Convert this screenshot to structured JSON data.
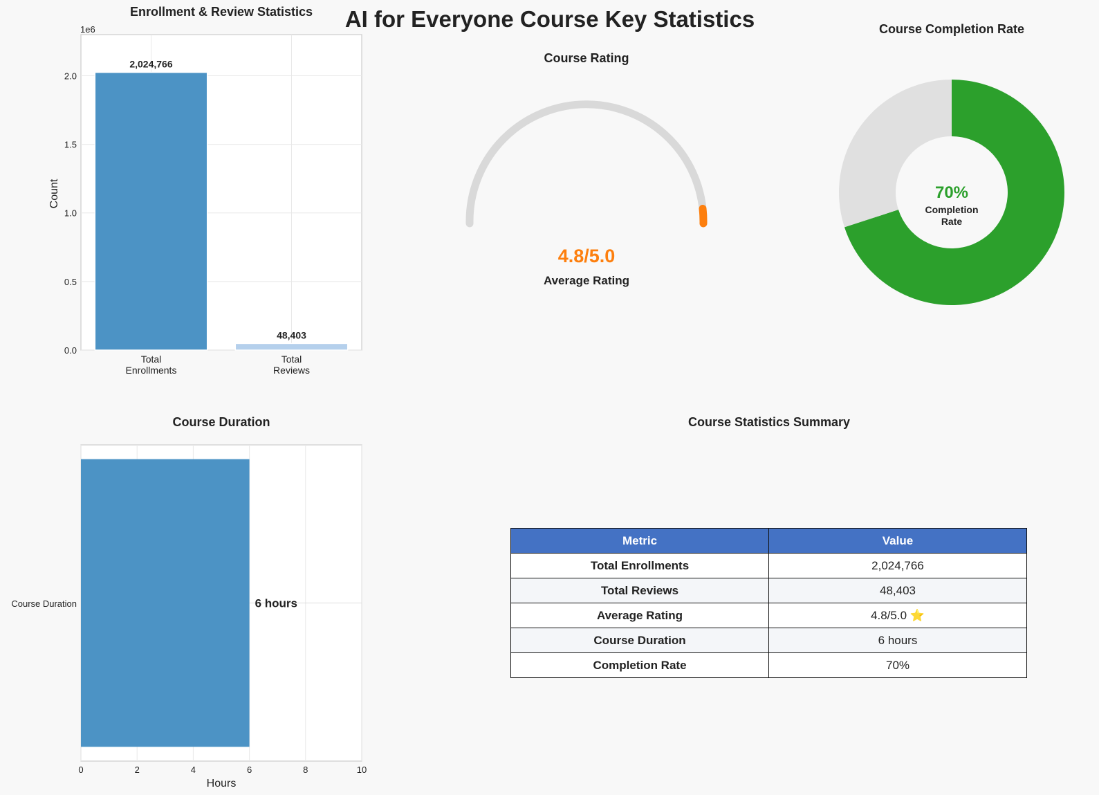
{
  "main_title": "AI for Everyone Course Key Statistics",
  "colors": {
    "blue": "#4c93c5",
    "light_blue": "#b5d0ec",
    "orange": "#fd7f0e",
    "green": "#2ca02c",
    "gray": "#d9d9d9",
    "donut_gray": "#e0e0e0",
    "table_header": "#4472c4"
  },
  "chart_data": [
    {
      "type": "bar",
      "title": "Enrollment & Review Statistics",
      "categories": [
        "Total\nEnrollments",
        "Total\nReviews"
      ],
      "values": [
        2024766,
        48403
      ],
      "value_labels": [
        "2,024,766",
        "48,403"
      ],
      "ylabel": "Count",
      "ylim": [
        0,
        2300000
      ],
      "yticks": [
        0.0,
        0.5,
        1.0,
        1.5,
        2.0
      ],
      "ytick_labels": [
        "0.0",
        "0.5",
        "1.0",
        "1.5",
        "2.0"
      ],
      "offset_label": "1e6",
      "grid": true
    },
    {
      "type": "gauge",
      "title": "Course Rating",
      "value": 4.8,
      "max": 5.0,
      "value_label": "4.8/5.0",
      "caption": "Average Rating"
    },
    {
      "type": "pie",
      "title": "Course Completion Rate",
      "values": [
        70,
        30
      ],
      "center_value": "70%",
      "center_caption": "Completion\nRate"
    },
    {
      "type": "bar",
      "orientation": "horizontal",
      "title": "Course Duration",
      "categories": [
        "Course Duration"
      ],
      "values": [
        6
      ],
      "value_label": "6 hours",
      "xlabel": "Hours",
      "xlim": [
        0,
        10
      ],
      "xticks": [
        0,
        2,
        4,
        6,
        8,
        10
      ],
      "grid": true
    },
    {
      "type": "table",
      "title": "Course Statistics Summary",
      "columns": [
        "Metric",
        "Value"
      ],
      "rows": [
        [
          "Total Enrollments",
          "2,024,766"
        ],
        [
          "Total Reviews",
          "48,403"
        ],
        [
          "Average Rating",
          "4.8/5.0 ⭐"
        ],
        [
          "Course Duration",
          "6 hours"
        ],
        [
          "Completion Rate",
          "70%"
        ]
      ]
    }
  ]
}
